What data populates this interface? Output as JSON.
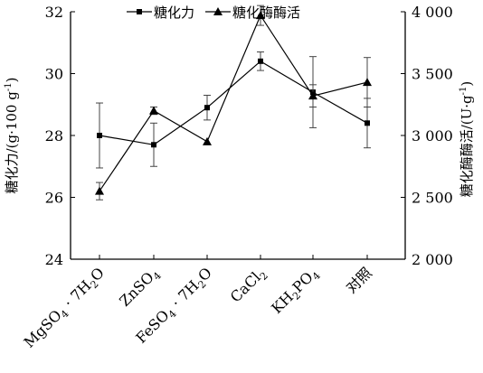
{
  "chart_data": {
    "type": "line",
    "categories": [
      "MgSO4 · 7H2O",
      "ZnSO4",
      "FeSO4 · 7H2O",
      "CaCl2",
      "KH2PO4",
      "对照"
    ],
    "category_labels": [
      {
        "parts": [
          [
            "MgSO",
            ""
          ],
          [
            "4",
            "sub"
          ],
          [
            " · 7H",
            ""
          ],
          [
            "2",
            "sub"
          ],
          [
            "O",
            ""
          ]
        ]
      },
      {
        "parts": [
          [
            "ZnSO",
            ""
          ],
          [
            "4",
            "sub"
          ]
        ]
      },
      {
        "parts": [
          [
            "FeSO",
            ""
          ],
          [
            "4",
            "sub"
          ],
          [
            " · 7H",
            ""
          ],
          [
            "2",
            "sub"
          ],
          [
            "O",
            ""
          ]
        ]
      },
      {
        "parts": [
          [
            "CaCl",
            ""
          ],
          [
            "2",
            "sub"
          ]
        ]
      },
      {
        "parts": [
          [
            "KH",
            ""
          ],
          [
            "2",
            "sub"
          ],
          [
            "PO",
            ""
          ],
          [
            "4",
            "sub"
          ]
        ]
      },
      {
        "parts": [
          [
            "对照",
            ""
          ]
        ]
      }
    ],
    "y_left": {
      "label": "糖化力/(g·100 g⁻¹)",
      "label_parts": [
        [
          "糖化力/(g·100 g",
          ""
        ],
        [
          "-1",
          "sup"
        ],
        [
          ")",
          ""
        ]
      ],
      "ylim": [
        24,
        32
      ],
      "ticks": [
        24,
        26,
        28,
        30,
        32
      ],
      "tick_labels": [
        "24",
        "26",
        "28",
        "30",
        "32"
      ]
    },
    "y_right": {
      "label": "糖化酶酶活/(U·g⁻¹)",
      "label_parts": [
        [
          "糖化酶酶活/(U·g",
          ""
        ],
        [
          "-1",
          "sup"
        ],
        [
          ")",
          ""
        ]
      ],
      "ylim": [
        2000,
        4000
      ],
      "ticks": [
        2000,
        2500,
        3000,
        3500,
        4000
      ],
      "tick_labels": [
        "2 000",
        "2 500",
        "3 000",
        "3 500",
        "4 000"
      ]
    },
    "series": [
      {
        "name": "糖化力",
        "axis": "left",
        "marker": "square",
        "color": "#000000",
        "values": [
          28.0,
          27.7,
          28.9,
          30.4,
          29.4,
          28.4
        ],
        "error": [
          1.05,
          0.7,
          0.4,
          0.3,
          1.15,
          0.8
        ]
      },
      {
        "name": "糖化酶酶活",
        "axis": "right",
        "marker": "triangle",
        "color": "#000000",
        "values": [
          2550,
          3200,
          2950,
          3970,
          3320,
          3430
        ],
        "error": [
          70,
          30,
          0,
          80,
          90,
          200
        ]
      }
    ],
    "legend": {
      "placement": "top-center"
    },
    "grid": false
  }
}
